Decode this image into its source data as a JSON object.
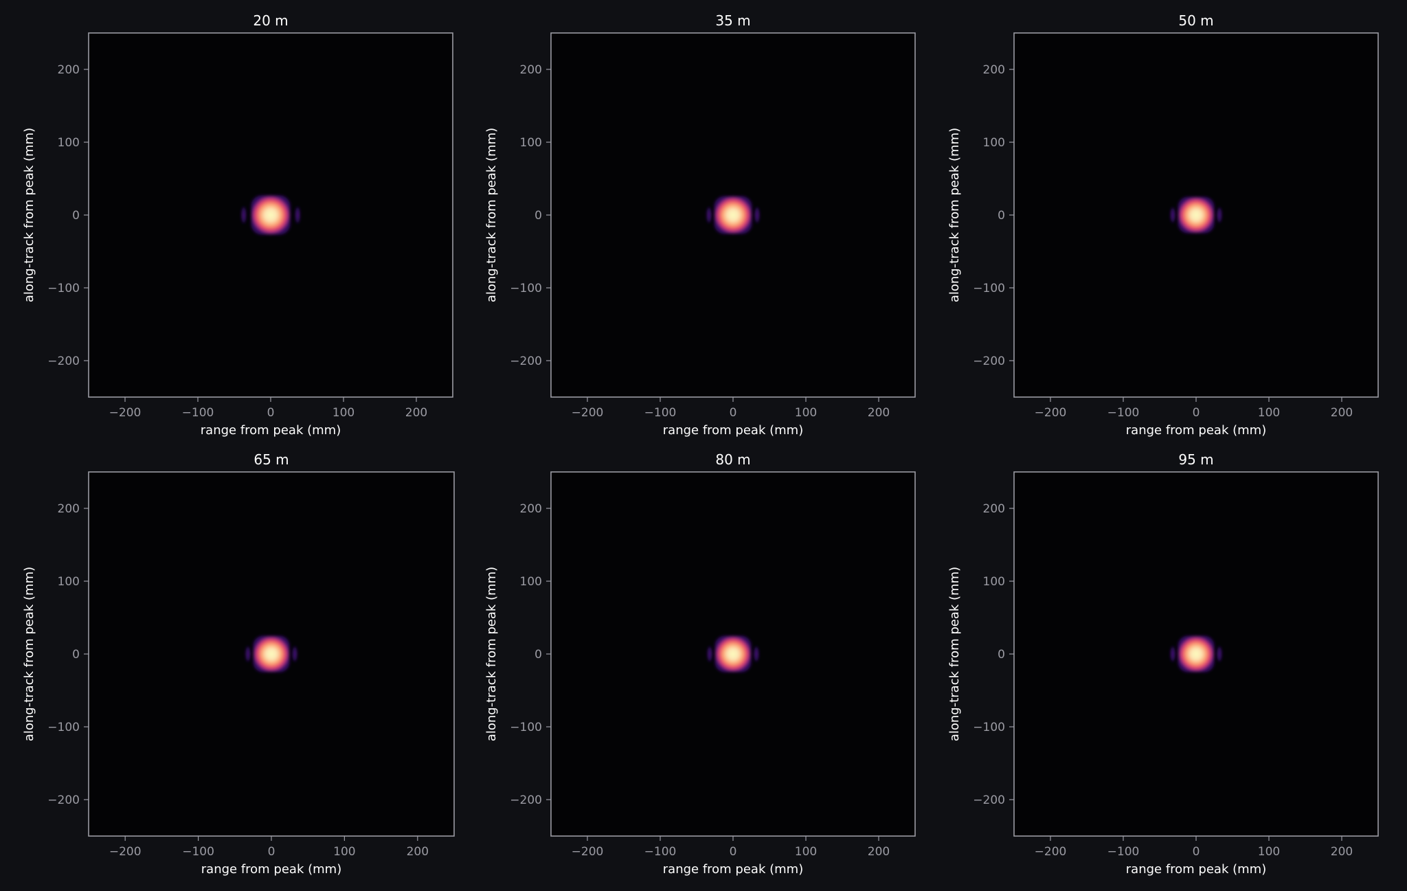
{
  "colors": {
    "background": "#0f1014",
    "plot_background": "#030305",
    "axis": "#9b9ba3",
    "text": "#ffffff",
    "colormap": "magma"
  },
  "chart_data": [
    {
      "type": "heatmap",
      "title": "20 m",
      "xlabel": "range from peak (mm)",
      "ylabel": "along-track from peak (mm)",
      "xlim": [
        -250,
        250
      ],
      "ylim": [
        -250,
        250
      ],
      "xticks": [
        -200,
        -100,
        0,
        100,
        200
      ],
      "yticks": [
        200,
        100,
        0,
        -100,
        -200
      ],
      "xtick_labels": [
        "−200",
        "−100",
        "0",
        "100",
        "200"
      ],
      "ytick_labels": [
        "200",
        "100",
        "0",
        "−100",
        "−200"
      ],
      "peak": {
        "x": 0,
        "y": 0,
        "half_width": 27,
        "half_height": 27,
        "sidelobe_x": 37
      },
      "grid": false
    },
    {
      "type": "heatmap",
      "title": "35 m",
      "xlabel": "range from peak (mm)",
      "ylabel": "along-track from peak (mm)",
      "xlim": [
        -250,
        250
      ],
      "ylim": [
        -250,
        250
      ],
      "xticks": [
        -200,
        -100,
        0,
        100,
        200
      ],
      "yticks": [
        200,
        100,
        0,
        -100,
        -200
      ],
      "xtick_labels": [
        "−200",
        "−100",
        "0",
        "100",
        "200"
      ],
      "ytick_labels": [
        "200",
        "100",
        "0",
        "−100",
        "−200"
      ],
      "peak": {
        "x": 0,
        "y": 0,
        "half_width": 26,
        "half_height": 26,
        "sidelobe_x": 33
      },
      "grid": false
    },
    {
      "type": "heatmap",
      "title": "50 m",
      "xlabel": "range from peak (mm)",
      "ylabel": "along-track from peak (mm)",
      "xlim": [
        -250,
        250
      ],
      "ylim": [
        -250,
        250
      ],
      "xticks": [
        -200,
        -100,
        0,
        100,
        200
      ],
      "yticks": [
        200,
        100,
        0,
        -100,
        -200
      ],
      "xtick_labels": [
        "−200",
        "−100",
        "0",
        "100",
        "200"
      ],
      "ytick_labels": [
        "200",
        "100",
        "0",
        "−100",
        "−200"
      ],
      "peak": {
        "x": 0,
        "y": 0,
        "half_width": 25,
        "half_height": 25,
        "sidelobe_x": 32
      },
      "grid": false
    },
    {
      "type": "heatmap",
      "title": "65 m",
      "xlabel": "range from peak (mm)",
      "ylabel": "along-track from peak (mm)",
      "xlim": [
        -250,
        250
      ],
      "ylim": [
        -250,
        250
      ],
      "xticks": [
        -200,
        -100,
        0,
        100,
        200
      ],
      "yticks": [
        200,
        100,
        0,
        -100,
        -200
      ],
      "xtick_labels": [
        "−200",
        "−100",
        "0",
        "100",
        "200"
      ],
      "ytick_labels": [
        "200",
        "100",
        "0",
        "−100",
        "−200"
      ],
      "peak": {
        "x": 0,
        "y": 0,
        "half_width": 25,
        "half_height": 25,
        "sidelobe_x": 32
      },
      "grid": false
    },
    {
      "type": "heatmap",
      "title": "80 m",
      "xlabel": "range from peak (mm)",
      "ylabel": "along-track from peak (mm)",
      "xlim": [
        -250,
        250
      ],
      "ylim": [
        -250,
        250
      ],
      "xticks": [
        -200,
        -100,
        0,
        100,
        200
      ],
      "yticks": [
        200,
        100,
        0,
        -100,
        -200
      ],
      "xtick_labels": [
        "−200",
        "−100",
        "0",
        "100",
        "200"
      ],
      "ytick_labels": [
        "200",
        "100",
        "0",
        "−100",
        "−200"
      ],
      "peak": {
        "x": 0,
        "y": 0,
        "half_width": 25,
        "half_height": 25,
        "sidelobe_x": 32
      },
      "grid": false
    },
    {
      "type": "heatmap",
      "title": "95 m",
      "xlabel": "range from peak (mm)",
      "ylabel": "along-track from peak (mm)",
      "xlim": [
        -250,
        250
      ],
      "ylim": [
        -250,
        250
      ],
      "xticks": [
        -200,
        -100,
        0,
        100,
        200
      ],
      "yticks": [
        200,
        100,
        0,
        -100,
        -200
      ],
      "xtick_labels": [
        "−200",
        "−100",
        "0",
        "100",
        "200"
      ],
      "ytick_labels": [
        "200",
        "100",
        "0",
        "−100",
        "−200"
      ],
      "peak": {
        "x": 0,
        "y": 0,
        "half_width": 25,
        "half_height": 25,
        "sidelobe_x": 32
      },
      "grid": false
    }
  ]
}
